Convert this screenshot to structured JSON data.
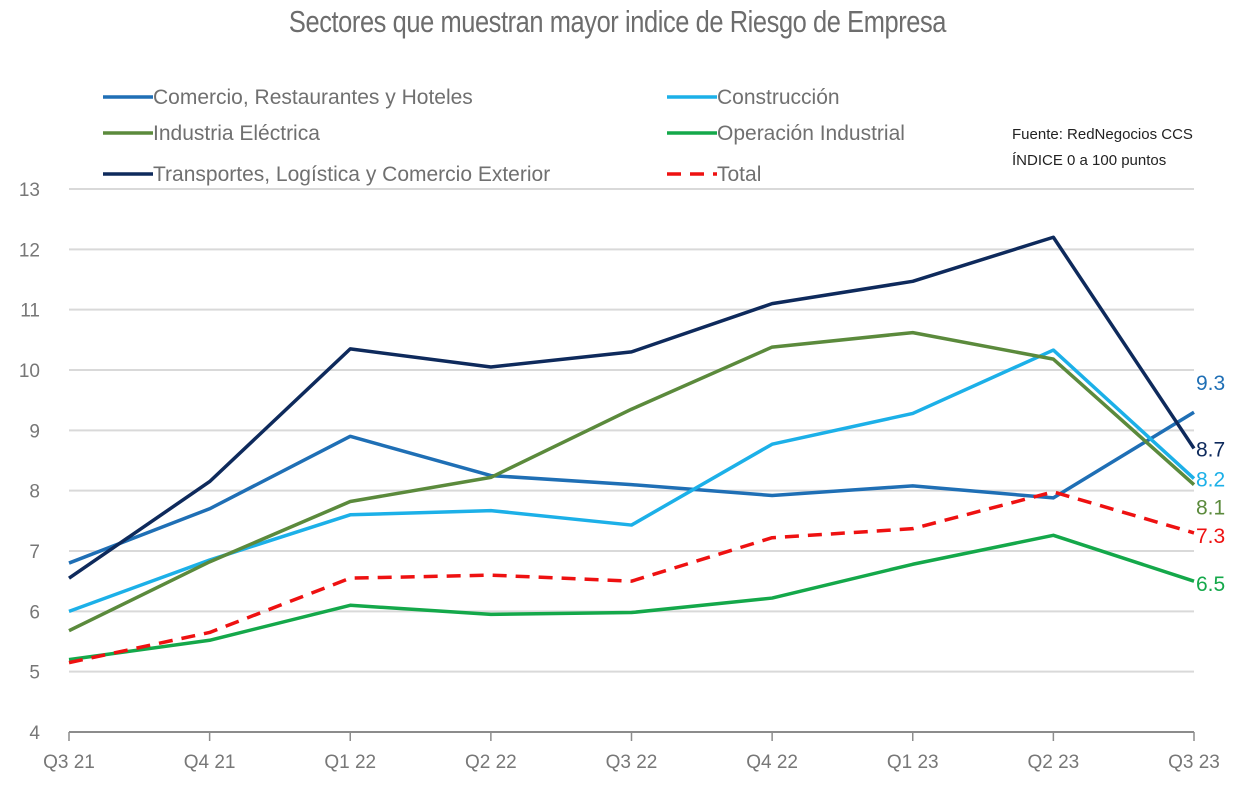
{
  "chart_data": {
    "type": "line",
    "title": "Sectores que muestran mayor indice de Riesgo de Empresa",
    "xlabel": "",
    "ylabel": "",
    "x": [
      "Q3 21",
      "Q4 21",
      "Q1 22",
      "Q2 22",
      "Q3 22",
      "Q4 22",
      "Q1 23",
      "Q2 23",
      "Q3 23"
    ],
    "ylim": [
      4,
      13
    ],
    "yticks": [
      "4",
      "5",
      "6",
      "7",
      "8",
      "9",
      "10",
      "11",
      "12",
      "13"
    ],
    "grid": true,
    "legend_position": "top",
    "notes": [
      "Fuente: RedNegocios CCS",
      "ÍNDICE 0 a 100  puntos"
    ],
    "series": [
      {
        "name": "Comercio, Restaurantes y Hoteles",
        "color": "#1f6fb5",
        "dash": false,
        "values": [
          6.8,
          7.7,
          8.9,
          8.25,
          8.1,
          7.92,
          8.08,
          7.88,
          9.3
        ],
        "end_label": "9.3"
      },
      {
        "name": "Construcción",
        "color": "#1cb0e8",
        "dash": false,
        "values": [
          6.0,
          6.85,
          7.6,
          7.67,
          7.43,
          8.77,
          9.28,
          10.33,
          8.2
        ],
        "end_label": "8.2"
      },
      {
        "name": "Industria Eléctrica",
        "color": "#5b8a3c",
        "dash": false,
        "values": [
          5.68,
          6.82,
          7.82,
          8.22,
          9.35,
          10.38,
          10.62,
          10.18,
          8.1
        ],
        "end_label": "8.1"
      },
      {
        "name": "Operación Industrial",
        "color": "#14a84a",
        "dash": false,
        "values": [
          5.2,
          5.52,
          6.1,
          5.95,
          5.98,
          6.22,
          6.78,
          7.26,
          6.5
        ],
        "end_label": "6.5"
      },
      {
        "name": "Transportes, Logística y Comercio Exterior",
        "color": "#0e2a5c",
        "dash": false,
        "values": [
          6.55,
          8.15,
          10.35,
          10.05,
          10.3,
          11.1,
          11.47,
          12.2,
          8.7
        ],
        "end_label": "8.7"
      },
      {
        "name": "Total",
        "color": "#ee1111",
        "dash": true,
        "values": [
          5.15,
          5.65,
          6.55,
          6.6,
          6.5,
          7.22,
          7.37,
          7.98,
          7.3
        ],
        "end_label": "7.3"
      }
    ]
  }
}
